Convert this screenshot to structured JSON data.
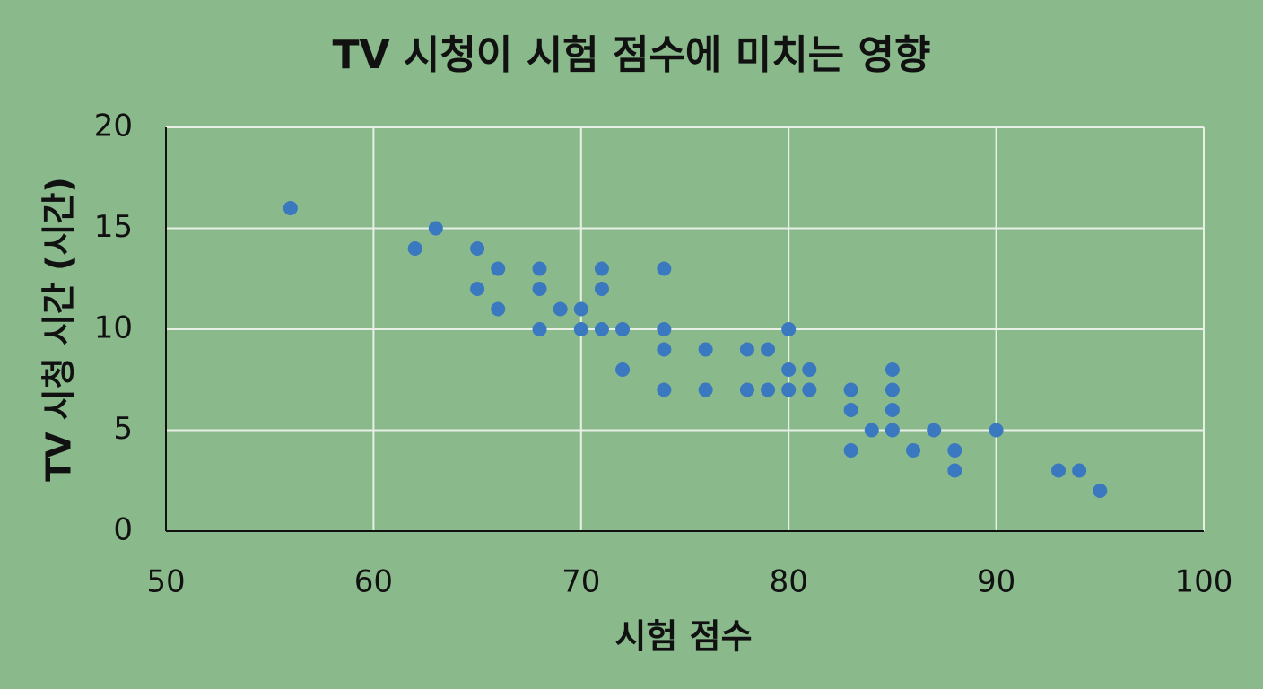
{
  "chart_data": {
    "type": "scatter",
    "title": "TV 시청이 시험 점수에 미치는 영향",
    "x_label": "시험 점수",
    "y_label": "TV 시청 시간 (시간)",
    "color": "#3a78c0",
    "grid": true,
    "xlim": [
      50,
      100
    ],
    "xticks": [
      50,
      60,
      70,
      80,
      90,
      100
    ],
    "ylim": [
      0,
      20
    ],
    "yticks": [
      0,
      5,
      10,
      15,
      20
    ],
    "x": [
      56,
      62,
      63,
      65,
      65,
      66,
      66,
      68,
      68,
      68,
      69,
      70,
      70,
      71,
      71,
      71,
      72,
      72,
      74,
      74,
      74,
      74,
      76,
      76,
      78,
      78,
      79,
      79,
      80,
      80,
      80,
      81,
      81,
      83,
      83,
      83,
      84,
      85,
      85,
      85,
      85,
      86,
      87,
      88,
      88,
      90,
      93,
      94,
      95
    ],
    "values": [
      16,
      14,
      15,
      14,
      12,
      13,
      11,
      13,
      12,
      10,
      11,
      11,
      10,
      13,
      12,
      10,
      10,
      8,
      13,
      10,
      9,
      7,
      9,
      7,
      9,
      7,
      9,
      7,
      10,
      8,
      7,
      8,
      7,
      7,
      6,
      4,
      5,
      8,
      7,
      6,
      5,
      4,
      5,
      4,
      3,
      5,
      3,
      3,
      2
    ]
  }
}
